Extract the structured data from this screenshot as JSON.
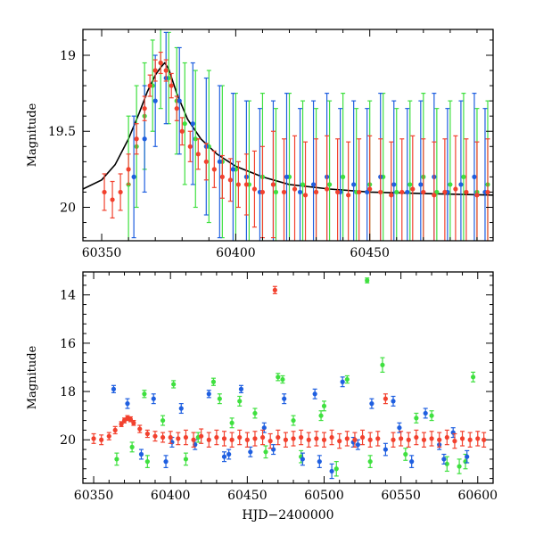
{
  "colors": {
    "series_red": "#f2412e",
    "series_green": "#3fe03f",
    "series_blue": "#1f5fe0",
    "model_curve": "#000000",
    "axis": "#000000",
    "background": "#ffffff"
  },
  "chart_data": [
    {
      "type": "scatter",
      "panel": "top",
      "title": "",
      "xlabel": "",
      "ylabel": "Magnitude",
      "xlim": [
        60343,
        60496
      ],
      "ylim": [
        20.22,
        18.83
      ],
      "y_inverted": true,
      "xticks": [
        60350,
        60400,
        60450
      ],
      "xtick_labels": [
        "60350",
        "60400",
        "60450"
      ],
      "yticks": [
        19,
        19.5,
        20
      ],
      "ytick_labels": [
        "19",
        "19.5",
        "20"
      ],
      "error_bars": true,
      "grid": false,
      "legend": "none",
      "series": [
        {
          "color": "green",
          "x": [
            60360,
            60363,
            60366,
            60369,
            60372,
            60375,
            60378,
            60381,
            60385,
            60390,
            60395,
            60400,
            60405,
            60410,
            60415,
            60420,
            60425,
            60430,
            60435,
            60440,
            60445,
            60450,
            60455,
            60460,
            60465,
            60470,
            60475,
            60480,
            60485,
            60490,
            60494
          ],
          "y": [
            19.85,
            19.6,
            19.4,
            19.2,
            19.05,
            19.15,
            19.3,
            19.45,
            19.55,
            19.6,
            19.7,
            19.75,
            19.85,
            19.8,
            19.9,
            19.8,
            19.85,
            19.9,
            19.85,
            19.8,
            19.9,
            19.85,
            19.8,
            19.9,
            19.85,
            19.8,
            19.9,
            19.85,
            19.8,
            19.9,
            19.85
          ],
          "err": [
            0.45,
            0.4,
            0.35,
            0.3,
            0.3,
            0.3,
            0.35,
            0.4,
            0.45,
            0.5,
            0.5,
            0.5,
            0.55,
            0.55,
            0.55,
            0.55,
            0.55,
            0.55,
            0.55,
            0.55,
            0.55,
            0.55,
            0.55,
            0.55,
            0.55,
            0.55,
            0.55,
            0.55,
            0.55,
            0.55,
            0.55
          ]
        },
        {
          "color": "blue",
          "x": [
            60362,
            60366,
            60370,
            60374,
            60379,
            60384,
            60389,
            60394,
            60399,
            60404,
            60409,
            60414,
            60419,
            60424,
            60429,
            60434,
            60439,
            60444,
            60449,
            60454,
            60459,
            60464,
            60469,
            60474,
            60479,
            60484,
            60489,
            60493
          ],
          "y": [
            19.8,
            19.55,
            19.3,
            19.15,
            19.3,
            19.45,
            19.6,
            19.7,
            19.75,
            19.8,
            19.9,
            19.85,
            19.8,
            19.9,
            19.85,
            19.8,
            19.9,
            19.85,
            19.9,
            19.8,
            19.85,
            19.9,
            19.85,
            19.8,
            19.9,
            19.85,
            19.8,
            19.9
          ],
          "err": [
            0.4,
            0.35,
            0.3,
            0.3,
            0.35,
            0.4,
            0.45,
            0.5,
            0.5,
            0.5,
            0.55,
            0.55,
            0.55,
            0.55,
            0.55,
            0.55,
            0.55,
            0.55,
            0.55,
            0.55,
            0.55,
            0.55,
            0.55,
            0.55,
            0.55,
            0.55,
            0.55,
            0.55
          ]
        },
        {
          "color": "red",
          "x": [
            60351,
            60354,
            60357,
            60360,
            60363,
            60366,
            60368,
            60370,
            60372,
            60374,
            60376,
            60378,
            60380,
            60383,
            60386,
            60389,
            60392,
            60395,
            60398,
            60401,
            60404,
            60407,
            60410,
            60414,
            60418,
            60422,
            60426,
            60430,
            60434,
            60438,
            60442,
            60446,
            60450,
            60454,
            60458,
            60462,
            60466,
            60470,
            60474,
            60478,
            60482,
            60486,
            60490,
            60494
          ],
          "y": [
            19.9,
            19.95,
            19.9,
            19.75,
            19.55,
            19.35,
            19.2,
            19.1,
            19.05,
            19.1,
            19.2,
            19.35,
            19.5,
            19.6,
            19.65,
            19.7,
            19.75,
            19.8,
            19.82,
            19.85,
            19.85,
            19.88,
            19.9,
            19.85,
            19.9,
            19.88,
            19.92,
            19.9,
            19.88,
            19.9,
            19.92,
            19.9,
            19.88,
            19.9,
            19.92,
            19.9,
            19.88,
            19.9,
            19.92,
            19.9,
            19.88,
            19.9,
            19.92,
            19.9
          ],
          "err": [
            0.12,
            0.12,
            0.12,
            0.1,
            0.1,
            0.08,
            0.07,
            0.07,
            0.07,
            0.07,
            0.08,
            0.08,
            0.09,
            0.1,
            0.1,
            0.12,
            0.12,
            0.14,
            0.14,
            0.15,
            0.2,
            0.25,
            0.3,
            0.35,
            0.35,
            0.35,
            0.35,
            0.35,
            0.35,
            0.35,
            0.35,
            0.35,
            0.35,
            0.35,
            0.35,
            0.35,
            0.35,
            0.35,
            0.35,
            0.35,
            0.35,
            0.35,
            0.35,
            0.35
          ]
        }
      ],
      "model": {
        "color": "black",
        "x": [
          60343,
          60350,
          60355,
          60360,
          60364,
          60367,
          60370,
          60372,
          60373.5,
          60375,
          60378,
          60382,
          60387,
          60393,
          60400,
          60410,
          60420,
          60435,
          60450,
          60470,
          60496
        ],
        "y": [
          19.88,
          19.82,
          19.72,
          19.55,
          19.38,
          19.24,
          19.13,
          19.08,
          19.05,
          19.09,
          19.25,
          19.42,
          19.55,
          19.65,
          19.73,
          19.8,
          19.85,
          19.88,
          19.9,
          19.91,
          19.92
        ]
      }
    },
    {
      "type": "scatter",
      "panel": "bottom",
      "title": "",
      "xlabel": "HJD−2400000",
      "ylabel": "Magnitude",
      "xlim": [
        60343,
        60610
      ],
      "ylim": [
        21.8,
        13.05
      ],
      "y_inverted": true,
      "xticks": [
        60350,
        60400,
        60450,
        60500,
        60550,
        60600
      ],
      "xtick_labels": [
        "60350",
        "60400",
        "60450",
        "60500",
        "60550",
        "60600"
      ],
      "yticks": [
        14,
        16,
        18,
        20
      ],
      "ytick_labels": [
        "14",
        "16",
        "18",
        "20"
      ],
      "error_bars": true,
      "grid": false,
      "legend": "none",
      "series": [
        {
          "color": "green",
          "x": [
            60375,
            60383,
            60395,
            60402,
            60410,
            60428,
            60440,
            60455,
            60470,
            60473,
            60485,
            60500,
            60515,
            60528,
            60538,
            60553,
            60570,
            60588,
            60592,
            60385,
            60418,
            60445,
            60462,
            60480,
            60508,
            60530,
            60560,
            60580,
            60597,
            60365,
            60432,
            60498
          ],
          "y": [
            20.3,
            18.1,
            19.2,
            17.7,
            20.8,
            17.6,
            19.3,
            18.9,
            17.4,
            17.5,
            20.7,
            18.6,
            17.5,
            13.4,
            16.9,
            20.6,
            19.0,
            21.1,
            20.9,
            20.9,
            19.9,
            18.4,
            20.5,
            19.2,
            21.2,
            20.9,
            19.1,
            21.0,
            17.4,
            20.8,
            18.3,
            19.0
          ],
          "err": [
            0.2,
            0.15,
            0.2,
            0.15,
            0.25,
            0.15,
            0.2,
            0.2,
            0.15,
            0.15,
            0.25,
            0.2,
            0.15,
            0.1,
            0.3,
            0.25,
            0.2,
            0.3,
            0.3,
            0.25,
            0.2,
            0.2,
            0.25,
            0.2,
            0.3,
            0.25,
            0.2,
            0.3,
            0.2,
            0.25,
            0.2,
            0.2
          ]
        },
        {
          "color": "blue",
          "x": [
            60363,
            60372,
            60381,
            60389,
            60397,
            60407,
            60416,
            60425,
            60435,
            60446,
            60452,
            60461,
            60474,
            60486,
            60494,
            60505,
            60512,
            60522,
            60531,
            60540,
            60549,
            60557,
            60566,
            60575,
            60584,
            60593,
            60401,
            60438,
            60467,
            60497,
            60519,
            60545,
            60578
          ],
          "y": [
            17.9,
            18.5,
            20.6,
            18.3,
            20.9,
            18.7,
            20.2,
            18.1,
            20.7,
            17.9,
            20.5,
            19.5,
            18.3,
            20.8,
            18.1,
            21.3,
            17.6,
            20.2,
            18.5,
            20.4,
            19.5,
            20.9,
            18.9,
            20.2,
            19.7,
            20.7,
            20.1,
            20.6,
            20.4,
            20.9,
            20.1,
            18.4,
            20.8
          ],
          "err": [
            0.15,
            0.2,
            0.2,
            0.2,
            0.25,
            0.2,
            0.2,
            0.15,
            0.2,
            0.15,
            0.2,
            0.2,
            0.2,
            0.25,
            0.2,
            0.3,
            0.2,
            0.2,
            0.2,
            0.25,
            0.2,
            0.25,
            0.2,
            0.2,
            0.2,
            0.25,
            0.2,
            0.2,
            0.2,
            0.25,
            0.2,
            0.2,
            0.2
          ]
        },
        {
          "color": "red",
          "x": [
            60350,
            60355,
            60360,
            60364,
            60368,
            60370,
            60372,
            60374,
            60376,
            60380,
            60385,
            60390,
            60395,
            60400,
            60405,
            60410,
            60415,
            60420,
            60425,
            60430,
            60435,
            60440,
            60445,
            60450,
            60455,
            60460,
            60465,
            60468,
            60470,
            60475,
            60480,
            60485,
            60490,
            60495,
            60500,
            60505,
            60510,
            60515,
            60520,
            60525,
            60530,
            60535,
            60540,
            60545,
            60550,
            60555,
            60560,
            60565,
            60570,
            60575,
            60580,
            60585,
            60590,
            60595,
            60600,
            60604
          ],
          "y": [
            19.95,
            20.0,
            19.85,
            19.6,
            19.35,
            19.2,
            19.1,
            19.15,
            19.3,
            19.55,
            19.75,
            19.85,
            19.9,
            19.9,
            19.95,
            19.9,
            20.0,
            19.85,
            20.0,
            19.9,
            19.95,
            20.0,
            19.9,
            20.0,
            19.95,
            19.9,
            20.05,
            13.8,
            19.9,
            20.0,
            19.95,
            19.9,
            20.0,
            19.95,
            20.0,
            19.9,
            20.05,
            19.95,
            20.0,
            19.9,
            20.0,
            19.95,
            18.3,
            20.0,
            19.95,
            20.0,
            19.9,
            20.0,
            19.95,
            20.0,
            19.9,
            20.05,
            19.95,
            20.0,
            19.95,
            20.0
          ],
          "err": [
            0.2,
            0.2,
            0.15,
            0.15,
            0.1,
            0.1,
            0.1,
            0.1,
            0.1,
            0.15,
            0.15,
            0.2,
            0.2,
            0.25,
            0.25,
            0.3,
            0.3,
            0.3,
            0.3,
            0.3,
            0.3,
            0.3,
            0.3,
            0.3,
            0.3,
            0.3,
            0.3,
            0.15,
            0.3,
            0.3,
            0.3,
            0.3,
            0.3,
            0.3,
            0.3,
            0.3,
            0.3,
            0.3,
            0.3,
            0.3,
            0.3,
            0.3,
            0.2,
            0.3,
            0.3,
            0.3,
            0.3,
            0.3,
            0.3,
            0.3,
            0.3,
            0.3,
            0.3,
            0.3,
            0.3,
            0.3
          ]
        }
      ]
    }
  ]
}
